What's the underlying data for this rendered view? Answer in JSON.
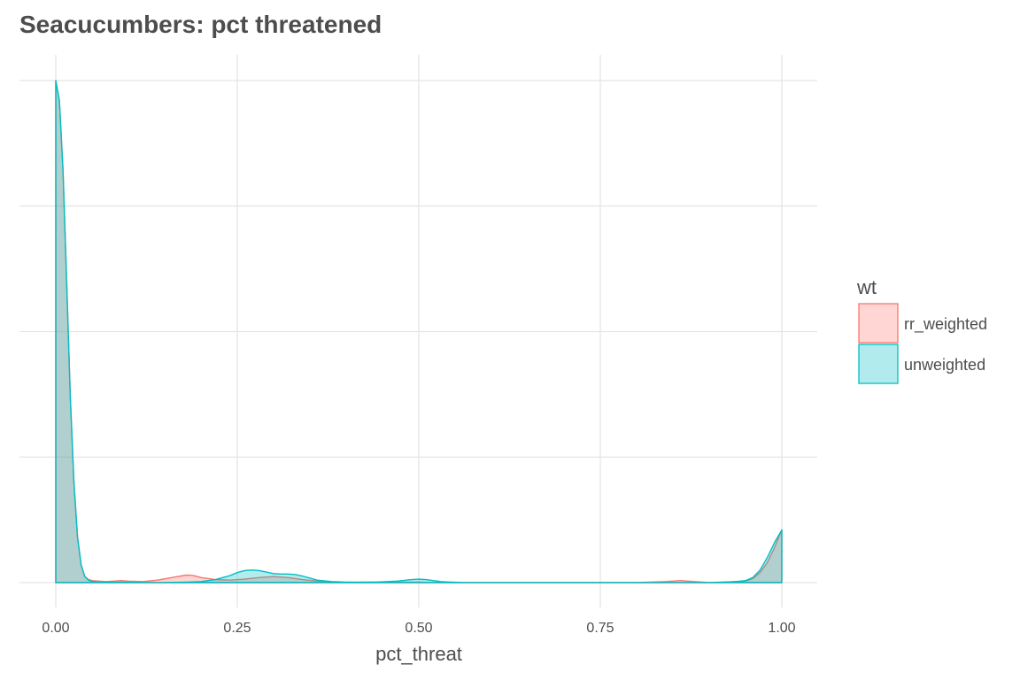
{
  "chart_data": {
    "type": "area",
    "title": "Seacucumbers: pct threatened",
    "xlabel": "pct_threat",
    "ylabel": "",
    "xlim": [
      0,
      1
    ],
    "ylim": [
      0,
      1
    ],
    "x_ticks": [
      "0.00",
      "0.25",
      "0.50",
      "0.75",
      "1.00"
    ],
    "x_tick_values": [
      0,
      0.25,
      0.5,
      0.75,
      1.0
    ],
    "y_gridlines": [
      0,
      0.25,
      0.5,
      0.75,
      1.0
    ],
    "grid": true,
    "legend": {
      "title": "wt",
      "position": "right"
    },
    "series": [
      {
        "name": "rr_weighted",
        "color": "#f8766d",
        "fill": "#ffd6d3",
        "x": [
          0,
          0.005,
          0.01,
          0.015,
          0.02,
          0.025,
          0.03,
          0.035,
          0.04,
          0.045,
          0.05,
          0.06,
          0.07,
          0.08,
          0.09,
          0.1,
          0.12,
          0.14,
          0.16,
          0.18,
          0.19,
          0.2,
          0.22,
          0.24,
          0.26,
          0.28,
          0.3,
          0.32,
          0.34,
          0.36,
          0.38,
          0.4,
          0.44,
          0.48,
          0.5,
          0.52,
          0.55,
          0.6,
          0.7,
          0.8,
          0.84,
          0.86,
          0.88,
          0.9,
          0.95,
          0.96,
          0.97,
          0.98,
          0.99,
          1.0
        ],
        "y": [
          1.0,
          0.96,
          0.82,
          0.6,
          0.37,
          0.2,
          0.09,
          0.035,
          0.012,
          0.006,
          0.004,
          0.003,
          0.002,
          0.003,
          0.004,
          0.003,
          0.002,
          0.005,
          0.01,
          0.015,
          0.014,
          0.01,
          0.006,
          0.005,
          0.007,
          0.01,
          0.012,
          0.01,
          0.006,
          0.003,
          0.001,
          0.0,
          0.001,
          0.001,
          0.001,
          0.0,
          0.0,
          0.0,
          0.0,
          0.0,
          0.002,
          0.004,
          0.002,
          0.0,
          0.003,
          0.008,
          0.02,
          0.04,
          0.07,
          0.105
        ]
      },
      {
        "name": "unweighted",
        "color": "#00bfc4",
        "fill": "#b2ebed",
        "x": [
          0,
          0.005,
          0.01,
          0.015,
          0.02,
          0.025,
          0.03,
          0.035,
          0.04,
          0.045,
          0.05,
          0.06,
          0.08,
          0.1,
          0.12,
          0.15,
          0.18,
          0.2,
          0.22,
          0.24,
          0.25,
          0.26,
          0.27,
          0.28,
          0.29,
          0.3,
          0.31,
          0.32,
          0.33,
          0.34,
          0.35,
          0.36,
          0.38,
          0.4,
          0.44,
          0.47,
          0.49,
          0.5,
          0.51,
          0.53,
          0.56,
          0.6,
          0.7,
          0.8,
          0.9,
          0.93,
          0.95,
          0.96,
          0.97,
          0.98,
          0.99,
          1.0
        ],
        "y": [
          1.0,
          0.96,
          0.82,
          0.6,
          0.37,
          0.2,
          0.09,
          0.035,
          0.012,
          0.005,
          0.002,
          0.001,
          0.001,
          0.001,
          0.0,
          0.0,
          0.001,
          0.002,
          0.006,
          0.014,
          0.02,
          0.024,
          0.025,
          0.024,
          0.021,
          0.018,
          0.017,
          0.017,
          0.016,
          0.013,
          0.009,
          0.005,
          0.002,
          0.001,
          0.001,
          0.003,
          0.006,
          0.007,
          0.006,
          0.002,
          0.0,
          0.0,
          0.0,
          0.0,
          0.0,
          0.001,
          0.004,
          0.01,
          0.025,
          0.05,
          0.08,
          0.105
        ]
      }
    ]
  }
}
